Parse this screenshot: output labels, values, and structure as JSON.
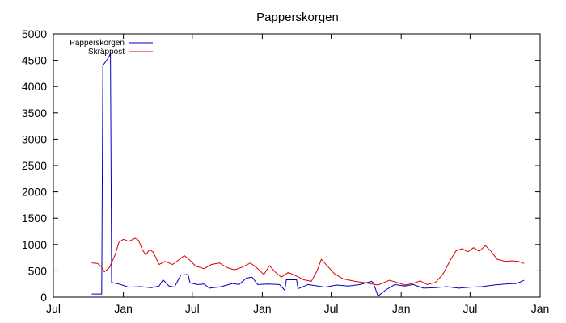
{
  "chart_data": {
    "type": "line",
    "title": "Papperskorgen",
    "xlabel": "",
    "ylabel": "",
    "ylim": [
      0,
      5000
    ],
    "x_range": [
      "2012-07-01",
      "2016-01-01"
    ],
    "x_ticks": [
      {
        "date": "2012-07-01",
        "label": "Jul"
      },
      {
        "date": "2013-01-01",
        "label": "Jan"
      },
      {
        "date": "2013-07-01",
        "label": "Jul"
      },
      {
        "date": "2014-01-01",
        "label": "Jan"
      },
      {
        "date": "2014-07-01",
        "label": "Jul"
      },
      {
        "date": "2015-01-01",
        "label": "Jan"
      },
      {
        "date": "2015-07-01",
        "label": "Jul"
      },
      {
        "date": "2016-01-01",
        "label": "Jan"
      }
    ],
    "y_ticks": [
      0,
      500,
      1000,
      1500,
      2000,
      2500,
      3000,
      3500,
      4000,
      4500,
      5000
    ],
    "grid": false,
    "legend_position": "top-left",
    "series": [
      {
        "name": "Papperskorgen",
        "color": "#0000c0",
        "points": [
          [
            "2012-10-10",
            60
          ],
          [
            "2012-11-05",
            60
          ],
          [
            "2012-11-08",
            4400
          ],
          [
            "2012-11-20",
            4520
          ],
          [
            "2012-11-28",
            4620
          ],
          [
            "2012-11-30",
            2000
          ],
          [
            "2012-12-01",
            280
          ],
          [
            "2012-12-20",
            250
          ],
          [
            "2013-01-15",
            190
          ],
          [
            "2013-02-15",
            200
          ],
          [
            "2013-03-15",
            180
          ],
          [
            "2013-04-05",
            210
          ],
          [
            "2013-04-15",
            330
          ],
          [
            "2013-05-01",
            210
          ],
          [
            "2013-05-15",
            190
          ],
          [
            "2013-06-01",
            420
          ],
          [
            "2013-06-20",
            430
          ],
          [
            "2013-06-25",
            270
          ],
          [
            "2013-07-15",
            240
          ],
          [
            "2013-08-01",
            250
          ],
          [
            "2013-08-15",
            170
          ],
          [
            "2013-09-15",
            200
          ],
          [
            "2013-10-15",
            260
          ],
          [
            "2013-11-01",
            240
          ],
          [
            "2013-11-20",
            360
          ],
          [
            "2013-12-05",
            380
          ],
          [
            "2013-12-20",
            240
          ],
          [
            "2014-01-15",
            250
          ],
          [
            "2014-02-15",
            240
          ],
          [
            "2014-03-01",
            130
          ],
          [
            "2014-03-05",
            330
          ],
          [
            "2014-04-01",
            330
          ],
          [
            "2014-04-05",
            160
          ],
          [
            "2014-05-01",
            240
          ],
          [
            "2014-06-15",
            190
          ],
          [
            "2014-07-15",
            230
          ],
          [
            "2014-08-15",
            210
          ],
          [
            "2014-09-15",
            240
          ],
          [
            "2014-10-15",
            300
          ],
          [
            "2014-10-20",
            270
          ],
          [
            "2014-11-01",
            20
          ],
          [
            "2014-11-20",
            130
          ],
          [
            "2014-12-01",
            180
          ],
          [
            "2014-12-15",
            240
          ],
          [
            "2015-01-10",
            210
          ],
          [
            "2015-02-01",
            240
          ],
          [
            "2015-03-01",
            170
          ],
          [
            "2015-04-01",
            180
          ],
          [
            "2015-05-01",
            200
          ],
          [
            "2015-06-01",
            170
          ],
          [
            "2015-07-01",
            190
          ],
          [
            "2015-08-01",
            200
          ],
          [
            "2015-09-01",
            230
          ],
          [
            "2015-10-01",
            250
          ],
          [
            "2015-11-01",
            260
          ],
          [
            "2015-11-20",
            320
          ]
        ]
      },
      {
        "name": "Skräppost",
        "color": "#e00000",
        "points": [
          [
            "2012-10-10",
            650
          ],
          [
            "2012-10-25",
            640
          ],
          [
            "2012-11-05",
            570
          ],
          [
            "2012-11-12",
            480
          ],
          [
            "2012-11-25",
            560
          ],
          [
            "2012-12-10",
            800
          ],
          [
            "2012-12-20",
            1040
          ],
          [
            "2013-01-01",
            1100
          ],
          [
            "2013-01-15",
            1060
          ],
          [
            "2013-02-01",
            1120
          ],
          [
            "2013-02-10",
            1080
          ],
          [
            "2013-02-20",
            900
          ],
          [
            "2013-03-01",
            800
          ],
          [
            "2013-03-10",
            900
          ],
          [
            "2013-03-20",
            860
          ],
          [
            "2013-04-05",
            620
          ],
          [
            "2013-04-20",
            680
          ],
          [
            "2013-05-10",
            620
          ],
          [
            "2013-05-25",
            700
          ],
          [
            "2013-06-10",
            790
          ],
          [
            "2013-06-25",
            700
          ],
          [
            "2013-07-10",
            590
          ],
          [
            "2013-08-01",
            540
          ],
          [
            "2013-08-20",
            620
          ],
          [
            "2013-09-10",
            650
          ],
          [
            "2013-10-01",
            560
          ],
          [
            "2013-10-20",
            520
          ],
          [
            "2013-11-10",
            570
          ],
          [
            "2013-12-01",
            650
          ],
          [
            "2013-12-20",
            540
          ],
          [
            "2014-01-05",
            430
          ],
          [
            "2014-01-20",
            600
          ],
          [
            "2014-02-05",
            470
          ],
          [
            "2014-02-20",
            380
          ],
          [
            "2014-03-10",
            470
          ],
          [
            "2014-04-01",
            400
          ],
          [
            "2014-04-20",
            330
          ],
          [
            "2014-05-10",
            300
          ],
          [
            "2014-05-25",
            500
          ],
          [
            "2014-06-05",
            720
          ],
          [
            "2014-06-20",
            600
          ],
          [
            "2014-07-10",
            440
          ],
          [
            "2014-08-01",
            350
          ],
          [
            "2014-09-01",
            300
          ],
          [
            "2014-10-01",
            270
          ],
          [
            "2014-11-01",
            230
          ],
          [
            "2014-12-01",
            320
          ],
          [
            "2014-12-20",
            280
          ],
          [
            "2015-01-10",
            230
          ],
          [
            "2015-02-01",
            260
          ],
          [
            "2015-02-20",
            310
          ],
          [
            "2015-03-10",
            240
          ],
          [
            "2015-04-01",
            280
          ],
          [
            "2015-04-20",
            430
          ],
          [
            "2015-05-10",
            700
          ],
          [
            "2015-05-25",
            880
          ],
          [
            "2015-06-10",
            920
          ],
          [
            "2015-06-25",
            860
          ],
          [
            "2015-07-10",
            940
          ],
          [
            "2015-07-25",
            870
          ],
          [
            "2015-08-10",
            980
          ],
          [
            "2015-08-25",
            870
          ],
          [
            "2015-09-10",
            720
          ],
          [
            "2015-10-01",
            680
          ],
          [
            "2015-10-20",
            690
          ],
          [
            "2015-11-05",
            680
          ],
          [
            "2015-11-20",
            640
          ]
        ]
      }
    ]
  }
}
